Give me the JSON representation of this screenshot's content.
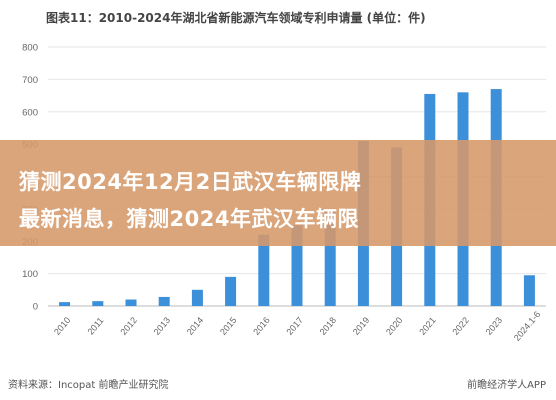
{
  "chart_data": {
    "type": "bar",
    "title": "图表11：2010-2024年湖北省新能源汽车领域专利申请量 (单位：件)",
    "categories": [
      "2010",
      "2011",
      "2012",
      "2013",
      "2014",
      "2015",
      "2016",
      "2017",
      "2018",
      "2019",
      "2020",
      "2021",
      "2022",
      "2023",
      "2024.1-6"
    ],
    "values": [
      12,
      15,
      20,
      28,
      50,
      90,
      220,
      250,
      300,
      510,
      490,
      655,
      660,
      670,
      95
    ],
    "ylim": [
      0,
      800
    ],
    "yticks": [
      0,
      100,
      200,
      300,
      400,
      500,
      600,
      700,
      800
    ],
    "grid": true,
    "bar_color": "#3c8fd9",
    "source": "资料来源：Incopat 前瞻产业研究院",
    "brand": "前瞻经济学人APP"
  },
  "banner": {
    "line1": "猜测2024年12月2日武汉车辆限牌",
    "line2": "最新消息，猜测2024年武汉车辆限",
    "color": "#d69869"
  }
}
